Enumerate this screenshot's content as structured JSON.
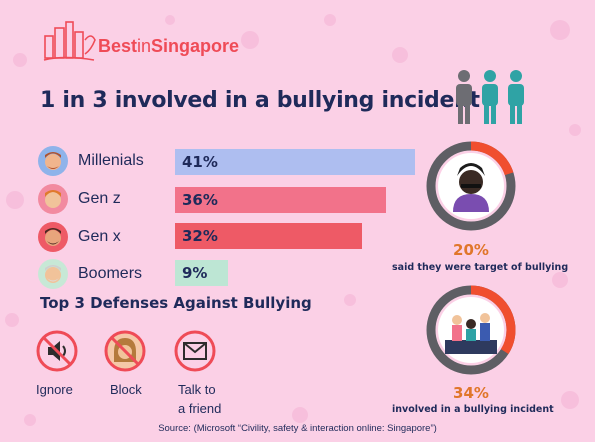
{
  "brand": {
    "part1": "Best",
    "part2": "in",
    "part3": "Singapore"
  },
  "headline": "1 in 3 involved in a bullying incident",
  "chart_data": {
    "type": "bar",
    "orientation": "horizontal",
    "title": "1 in 3 involved in a bullying incident",
    "categories": [
      "Millenials",
      "Gen z",
      "Gen x",
      "Boomers"
    ],
    "values": [
      41,
      36,
      32,
      9
    ],
    "value_labels": [
      "41%",
      "36%",
      "32%",
      "9%"
    ],
    "colors": [
      "#aebef0",
      "#f2728a",
      "#ee5a66",
      "#bde6d4"
    ],
    "xlim": [
      0,
      41
    ]
  },
  "defenses": {
    "title": "Top 3 Defenses Against Bullying",
    "items": [
      {
        "icon": "mute-icon",
        "label": "Ignore"
      },
      {
        "icon": "block-person-icon",
        "label": "Block"
      },
      {
        "icon": "envelope-icon",
        "label_line1": "Talk to",
        "label_line2": "a friend"
      }
    ]
  },
  "stats": [
    {
      "pct": "20%",
      "value": 20,
      "caption": "said they were target of bullying",
      "ring_color": "#f04e2f"
    },
    {
      "pct": "34%",
      "value": 34,
      "caption": "involved in a bullying incident",
      "ring_color": "#f04e2f"
    }
  ],
  "source": "Source: (Microsoft “Civility, safety & interaction online: Singapore”)"
}
